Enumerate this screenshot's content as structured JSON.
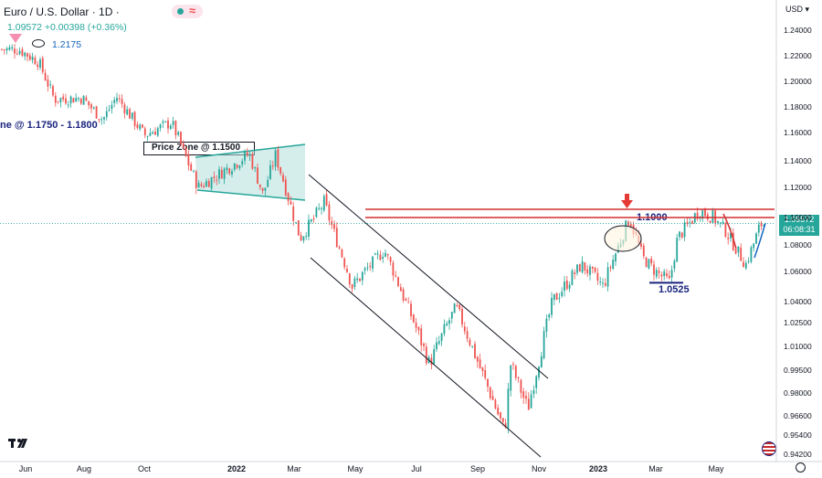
{
  "header": {
    "symbol": "Euro / U.S. Dollar · 1D ·",
    "last_price": "1.09572",
    "change": "+0.00398 (+0.36%)",
    "ref_level": "1.2175",
    "approx_symbol": "≈"
  },
  "price_axis": {
    "currency": "USD",
    "current_price": "1.09572",
    "countdown": "06:08:31"
  },
  "annotations": {
    "zone_top_left": "ne @ 1.1750 - 1.1800",
    "zone_mid": "Price Zone @ 1.1500",
    "level_resistance": "1.1000",
    "level_support": "1.0525"
  },
  "colors": {
    "up": "#26a69a",
    "down": "#ef5350",
    "resistance": "#d32f2f",
    "channel": "#131722",
    "zone_fill": "#b2dfdb",
    "zone_stroke": "#26a69a",
    "annotation_blue": "#1a237e",
    "arrow": "#e53935"
  },
  "chart_data": {
    "type": "candlestick",
    "title": "Euro / U.S. Dollar · 1D",
    "y_ticks": [
      "1.24000",
      "1.22000",
      "1.20000",
      "1.18000",
      "1.16000",
      "1.14000",
      "1.12000",
      "1.10000",
      "1.08000",
      "1.06000",
      "1.04000",
      "1.02500",
      "1.01000",
      "0.99500",
      "0.98000",
      "0.96600",
      "0.95400",
      "0.94200"
    ],
    "x_ticks": [
      "Jun",
      "Aug",
      "Oct",
      "2022",
      "Mar",
      "May",
      "Jul",
      "Sep",
      "Nov",
      "2023",
      "Mar",
      "May"
    ],
    "ylim": [
      0.942,
      1.248
    ],
    "axis_scale": "log",
    "price_path": [
      {
        "date": "2021-05-25",
        "close": 1.225
      },
      {
        "date": "2021-06-15",
        "close": 1.215
      },
      {
        "date": "2021-07-01",
        "close": 1.186
      },
      {
        "date": "2021-07-30",
        "close": 1.187
      },
      {
        "date": "2021-08-20",
        "close": 1.17
      },
      {
        "date": "2021-09-03",
        "close": 1.188
      },
      {
        "date": "2021-10-01",
        "close": 1.158
      },
      {
        "date": "2021-10-28",
        "close": 1.168
      },
      {
        "date": "2021-11-24",
        "close": 1.12
      },
      {
        "date": "2022-01-14",
        "close": 1.145
      },
      {
        "date": "2022-01-28",
        "close": 1.115
      },
      {
        "date": "2022-02-10",
        "close": 1.144
      },
      {
        "date": "2022-03-07",
        "close": 1.085
      },
      {
        "date": "2022-03-31",
        "close": 1.11
      },
      {
        "date": "2022-04-28",
        "close": 1.05
      },
      {
        "date": "2022-05-30",
        "close": 1.076
      },
      {
        "date": "2022-07-14",
        "close": 0.999
      },
      {
        "date": "2022-08-10",
        "close": 1.036
      },
      {
        "date": "2022-09-28",
        "close": 0.956
      },
      {
        "date": "2022-10-04",
        "close": 0.999
      },
      {
        "date": "2022-10-21",
        "close": 0.97
      },
      {
        "date": "2022-11-15",
        "close": 1.04
      },
      {
        "date": "2022-12-15",
        "close": 1.065
      },
      {
        "date": "2023-01-06",
        "close": 1.05
      },
      {
        "date": "2023-02-02",
        "close": 1.1
      },
      {
        "date": "2023-02-16",
        "close": 1.07
      },
      {
        "date": "2023-03-01",
        "close": 1.06
      },
      {
        "date": "2023-03-15",
        "close": 1.0525
      },
      {
        "date": "2023-03-23",
        "close": 1.085
      },
      {
        "date": "2023-04-14",
        "close": 1.105
      },
      {
        "date": "2023-04-28",
        "close": 1.1
      },
      {
        "date": "2023-05-11",
        "close": 1.09
      },
      {
        "date": "2023-05-31",
        "close": 1.065
      },
      {
        "date": "2023-06-15",
        "close": 1.095
      },
      {
        "date": "2023-06-22",
        "close": 1.0957
      }
    ],
    "levels": [
      {
        "label": "1.1000",
        "value": 1.1
      },
      {
        "label": "1.0525",
        "value": 1.0525
      }
    ],
    "current_price": 1.09572,
    "grid": false
  }
}
